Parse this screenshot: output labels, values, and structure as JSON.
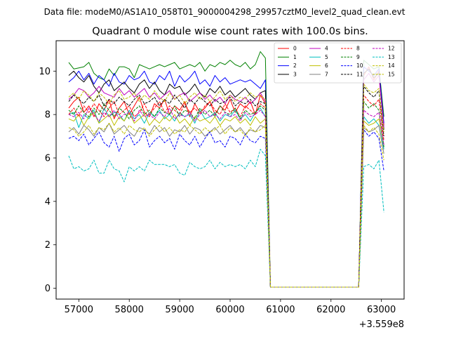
{
  "chart_data": {
    "type": "line",
    "suptitle": "Data file: modeM0/AS1A10_058T01_9000004298_29957cztM0_level2_quad_clean.evt",
    "title": "Quadrant 0 module wise count rates with 100.0s bins.",
    "xlabel": "",
    "ylabel": "",
    "x_offset_label": "+3.559e8",
    "x_offset": 355900000,
    "xlim": [
      56550,
      63450
    ],
    "ylim": [
      -0.5,
      11.4
    ],
    "xticks": [
      57000,
      58000,
      59000,
      60000,
      61000,
      62000,
      63000
    ],
    "xtick_labels": [
      "57000",
      "58000",
      "59000",
      "60000",
      "61000",
      "62000",
      "63000"
    ],
    "yticks": [
      0,
      2,
      4,
      6,
      8,
      10
    ],
    "ytick_labels": [
      "0",
      "2",
      "4",
      "6",
      "8",
      "10"
    ],
    "grid": false,
    "legend_position": "top-right",
    "legend_columns": 4,
    "x_first": 56800,
    "x_step": 100,
    "gap_x_start": 60850,
    "gap_x_end": 62550,
    "gap_value": 0,
    "series": [
      {
        "name": "0",
        "color": "#ff0000",
        "dash": "solid",
        "values": [
          8.3,
          8.6,
          8.8,
          8.1,
          8.4,
          7.9,
          8.5,
          8.2,
          8.7,
          7.8,
          8.3,
          8.6,
          8.0,
          8.4,
          8.8,
          8.1,
          7.9,
          8.5,
          8.3,
          8.7,
          8.0,
          8.4,
          8.2,
          8.6,
          7.9,
          8.5,
          8.1,
          8.3,
          8.6,
          8.0,
          8.4,
          8.2,
          8.7,
          8.1,
          8.5,
          8.3,
          8.6,
          8.0,
          8.9,
          8.5,
          0.05
        ],
        "post_gap": [
          0.05,
          9.8,
          10.2,
          9.6,
          10.0,
          7.5
        ]
      },
      {
        "name": "1",
        "color": "#008000",
        "dash": "solid",
        "values": [
          10.4,
          10.1,
          10.15,
          10.2,
          10.4,
          9.9,
          9.7,
          9.6,
          10.1,
          9.8,
          10.2,
          10.2,
          10.1,
          9.7,
          10.3,
          10.2,
          10.1,
          10.2,
          10.3,
          10.2,
          10.3,
          10.4,
          10.1,
          10.2,
          10.3,
          10.2,
          10.4,
          10.0,
          10.3,
          10.2,
          10.4,
          10.3,
          10.5,
          10.3,
          10.2,
          10.4,
          10.1,
          10.3,
          10.9,
          10.6,
          0.05
        ],
        "post_gap": [
          0.05,
          10.5,
          10.3,
          10.1,
          10.2,
          7.9
        ]
      },
      {
        "name": "2",
        "color": "#0000ff",
        "dash": "solid",
        "values": [
          9.5,
          9.7,
          10.0,
          9.6,
          9.9,
          9.4,
          9.8,
          9.6,
          9.3,
          9.9,
          9.5,
          9.4,
          9.8,
          9.6,
          9.7,
          10.0,
          9.5,
          9.4,
          9.8,
          9.6,
          10.0,
          9.3,
          9.8,
          9.5,
          9.7,
          10.0,
          9.4,
          9.6,
          9.3,
          9.8,
          9.5,
          9.7,
          9.4,
          9.5,
          9.6,
          9.5,
          9.6,
          9.4,
          9.2,
          9.6,
          0.05
        ],
        "post_gap": [
          0.05,
          10.2,
          10.0,
          9.8,
          10.1,
          7.6
        ]
      },
      {
        "name": "3",
        "color": "#000000",
        "dash": "solid",
        "values": [
          9.8,
          10.0,
          9.7,
          9.5,
          9.8,
          9.3,
          9.0,
          9.4,
          9.6,
          9.1,
          9.3,
          9.5,
          9.2,
          9.0,
          9.4,
          9.6,
          9.2,
          9.5,
          9.1,
          8.9,
          9.4,
          9.2,
          9.3,
          8.9,
          9.1,
          9.4,
          9.0,
          8.8,
          9.2,
          9.0,
          9.3,
          8.9,
          9.1,
          8.8,
          9.0,
          9.2,
          8.9,
          8.7,
          9.0,
          9.1,
          0.05
        ],
        "post_gap": [
          0.05,
          9.9,
          10.1,
          9.7,
          9.9,
          7.3
        ]
      },
      {
        "name": "4",
        "color": "#bf00bf",
        "dash": "solid",
        "values": [
          8.7,
          8.9,
          9.2,
          9.1,
          8.8,
          9.0,
          9.3,
          9.0,
          8.9,
          8.8,
          9.2,
          8.9,
          9.1,
          8.8,
          9.0,
          9.2,
          8.8,
          9.0,
          8.7,
          8.9,
          9.1,
          8.7,
          8.9,
          9.0,
          8.6,
          8.8,
          9.0,
          8.7,
          8.9,
          8.6,
          8.8,
          8.5,
          8.9,
          8.7,
          8.6,
          8.8,
          8.5,
          8.7,
          9.0,
          8.6,
          0.05
        ],
        "post_gap": [
          0.05,
          9.6,
          9.9,
          9.5,
          9.8,
          7.4
        ]
      },
      {
        "name": "5",
        "color": "#00bfbf",
        "dash": "solid",
        "values": [
          8.0,
          8.1,
          7.4,
          8.0,
          7.8,
          8.2,
          7.6,
          8.3,
          7.9,
          8.1,
          8.0,
          7.7,
          8.2,
          7.8,
          8.0,
          7.6,
          8.1,
          7.9,
          8.2,
          7.8,
          8.0,
          7.7,
          8.1,
          7.9,
          8.0,
          7.6,
          8.2,
          7.8,
          7.9,
          8.1,
          7.7,
          8.0,
          7.9,
          8.2,
          7.8,
          8.0,
          7.7,
          8.1,
          8.3,
          7.9,
          0.05
        ],
        "post_gap": [
          0.05,
          7.9,
          7.6,
          7.8,
          7.5,
          6.4
        ]
      },
      {
        "name": "6",
        "color": "#bfbf00",
        "dash": "solid",
        "values": [
          7.8,
          7.7,
          8.0,
          7.5,
          7.9,
          8.1,
          7.6,
          7.8,
          8.0,
          7.5,
          7.9,
          7.7,
          8.1,
          7.6,
          7.8,
          8.0,
          7.5,
          7.8,
          7.6,
          7.9,
          7.7,
          8.0,
          7.6,
          7.8,
          7.5,
          7.9,
          7.7,
          7.8,
          7.6,
          7.9,
          7.5,
          7.8,
          7.7,
          7.9,
          7.6,
          7.8,
          7.5,
          7.9,
          7.6,
          7.8,
          0.05
        ],
        "post_gap": [
          0.05,
          7.7,
          7.5,
          7.6,
          7.8,
          6.6
        ]
      },
      {
        "name": "7",
        "color": "#808080",
        "dash": "solid",
        "values": [
          7.2,
          7.4,
          7.1,
          7.5,
          7.3,
          7.0,
          7.4,
          7.2,
          7.6,
          7.1,
          7.3,
          7.5,
          7.2,
          7.0,
          7.4,
          7.3,
          7.1,
          7.5,
          7.2,
          7.4,
          7.0,
          7.3,
          7.2,
          7.5,
          7.1,
          7.4,
          7.3,
          7.0,
          7.2,
          7.4,
          7.1,
          7.3,
          7.5,
          7.2,
          7.4,
          7.1,
          7.3,
          7.2,
          7.5,
          7.4,
          0.05
        ],
        "post_gap": [
          0.05,
          7.4,
          7.2,
          7.3,
          7.5,
          6.2
        ]
      },
      {
        "name": "8",
        "color": "#ff0000",
        "dash": "dashed",
        "values": [
          8.0,
          8.3,
          7.9,
          8.4,
          8.1,
          8.5,
          8.2,
          7.9,
          8.3,
          8.6,
          8.0,
          8.2,
          8.4,
          7.9,
          8.1,
          8.5,
          8.0,
          8.3,
          8.6,
          8.1,
          8.4,
          8.2,
          8.0,
          8.5,
          8.1,
          8.3,
          8.0,
          8.4,
          8.6,
          8.2,
          8.0,
          8.5,
          8.1,
          8.3,
          7.9,
          8.4,
          8.2,
          8.0,
          8.5,
          8.3,
          0.05
        ],
        "post_gap": [
          0.05,
          8.9,
          8.6,
          8.4,
          8.7,
          6.8
        ]
      },
      {
        "name": "9",
        "color": "#008000",
        "dash": "dashed",
        "values": [
          8.2,
          8.0,
          8.4,
          8.1,
          7.9,
          8.3,
          8.0,
          8.5,
          8.2,
          7.9,
          8.3,
          8.1,
          7.8,
          8.2,
          8.4,
          8.0,
          8.2,
          7.9,
          8.3,
          8.1,
          8.0,
          8.4,
          7.9,
          8.2,
          8.1,
          7.8,
          8.3,
          8.0,
          8.2,
          7.9,
          8.4,
          8.1,
          8.0,
          8.3,
          7.8,
          8.2,
          8.0,
          8.1,
          8.4,
          8.2,
          0.05
        ],
        "post_gap": [
          0.05,
          8.6,
          8.3,
          8.5,
          8.2,
          6.5
        ]
      },
      {
        "name": "10",
        "color": "#0000ff",
        "dash": "dashed",
        "values": [
          6.9,
          7.0,
          6.8,
          7.1,
          6.6,
          6.9,
          7.2,
          6.7,
          6.5,
          7.0,
          6.3,
          6.9,
          7.1,
          6.6,
          6.8,
          7.3,
          6.5,
          6.8,
          7.0,
          6.7,
          6.9,
          6.4,
          7.1,
          6.8,
          6.6,
          7.0,
          6.5,
          6.9,
          7.2,
          6.7,
          6.8,
          6.5,
          7.0,
          6.9,
          6.6,
          7.1,
          6.8,
          6.7,
          7.0,
          6.9,
          0.05
        ],
        "post_gap": [
          0.05,
          7.3,
          7.0,
          7.2,
          6.9,
          5.4
        ]
      },
      {
        "name": "11",
        "color": "#000000",
        "dash": "dashed",
        "values": [
          8.6,
          8.9,
          8.7,
          8.5,
          8.8,
          8.6,
          8.9,
          8.4,
          8.7,
          8.5,
          8.8,
          8.6,
          8.4,
          8.7,
          8.9,
          8.5,
          8.6,
          8.8,
          8.4,
          8.7,
          8.5,
          8.9,
          8.6,
          8.3,
          8.7,
          8.5,
          8.8,
          8.6,
          8.4,
          8.7,
          8.5,
          8.6,
          8.8,
          8.4,
          8.6,
          8.5,
          8.7,
          8.4,
          8.6,
          8.5,
          0.05
        ],
        "post_gap": [
          0.05,
          9.3,
          9.0,
          8.8,
          9.1,
          7.0
        ]
      },
      {
        "name": "12",
        "color": "#bf00bf",
        "dash": "dashed",
        "values": [
          8.0,
          7.9,
          8.1,
          7.8,
          8.3,
          8.0,
          7.7,
          8.1,
          7.9,
          8.2,
          7.8,
          8.0,
          8.1,
          7.7,
          8.2,
          7.9,
          8.0,
          7.8,
          8.1,
          7.9,
          8.3,
          7.8,
          8.0,
          7.9,
          8.1,
          7.7,
          8.0,
          8.2,
          7.9,
          8.0,
          7.8,
          8.1,
          7.9,
          8.0,
          7.7,
          8.1,
          7.9,
          8.0,
          8.2,
          7.9,
          0.05
        ],
        "post_gap": [
          0.05,
          8.2,
          8.0,
          7.9,
          8.1,
          6.6
        ]
      },
      {
        "name": "13",
        "color": "#00bfbf",
        "dash": "dashed",
        "values": [
          6.1,
          5.5,
          5.6,
          5.4,
          5.5,
          5.9,
          5.3,
          5.3,
          5.9,
          5.5,
          5.4,
          4.9,
          5.6,
          5.4,
          5.6,
          5.4,
          5.9,
          5.7,
          5.7,
          5.7,
          5.6,
          5.7,
          5.3,
          5.2,
          5.8,
          5.6,
          5.5,
          5.6,
          5.9,
          5.5,
          5.8,
          5.6,
          5.7,
          5.6,
          5.7,
          5.5,
          5.9,
          5.6,
          6.4,
          6.1,
          0.05
        ],
        "post_gap": [
          0.05,
          5.6,
          5.7,
          5.5,
          5.9,
          3.5
        ]
      },
      {
        "name": "14",
        "color": "#bfbf00",
        "dash": "dashed",
        "values": [
          7.4,
          7.3,
          7.0,
          7.2,
          7.5,
          7.1,
          7.4,
          7.3,
          7.6,
          7.2,
          7.4,
          7.1,
          7.5,
          7.3,
          7.2,
          7.4,
          7.0,
          7.3,
          7.5,
          7.2,
          7.4,
          7.1,
          7.3,
          7.2,
          7.5,
          7.3,
          7.1,
          7.4,
          7.2,
          7.3,
          7.5,
          7.1,
          7.4,
          7.2,
          7.3,
          7.0,
          7.4,
          7.2,
          7.3,
          7.5,
          0.05
        ],
        "post_gap": [
          0.05,
          7.5,
          7.2,
          7.4,
          7.1,
          5.9
        ]
      },
      {
        "name": "15",
        "color": "#bfbf00",
        "dash": "dashed",
        "values": [
          8.8,
          9.0,
          8.7,
          9.1,
          8.9,
          8.6,
          9.0,
          8.8,
          8.5,
          8.9,
          9.1,
          8.7,
          8.8,
          9.0,
          8.6,
          8.9,
          8.7,
          9.1,
          8.8,
          8.6,
          9.0,
          8.7,
          8.9,
          8.5,
          8.8,
          9.0,
          8.7,
          8.9,
          8.6,
          8.8,
          9.1,
          8.7,
          8.9,
          8.6,
          8.8,
          8.7,
          9.0,
          8.8,
          8.9,
          8.7,
          0.05
        ],
        "post_gap": [
          0.05,
          9.4,
          9.1,
          9.0,
          9.2,
          7.2
        ]
      }
    ]
  }
}
